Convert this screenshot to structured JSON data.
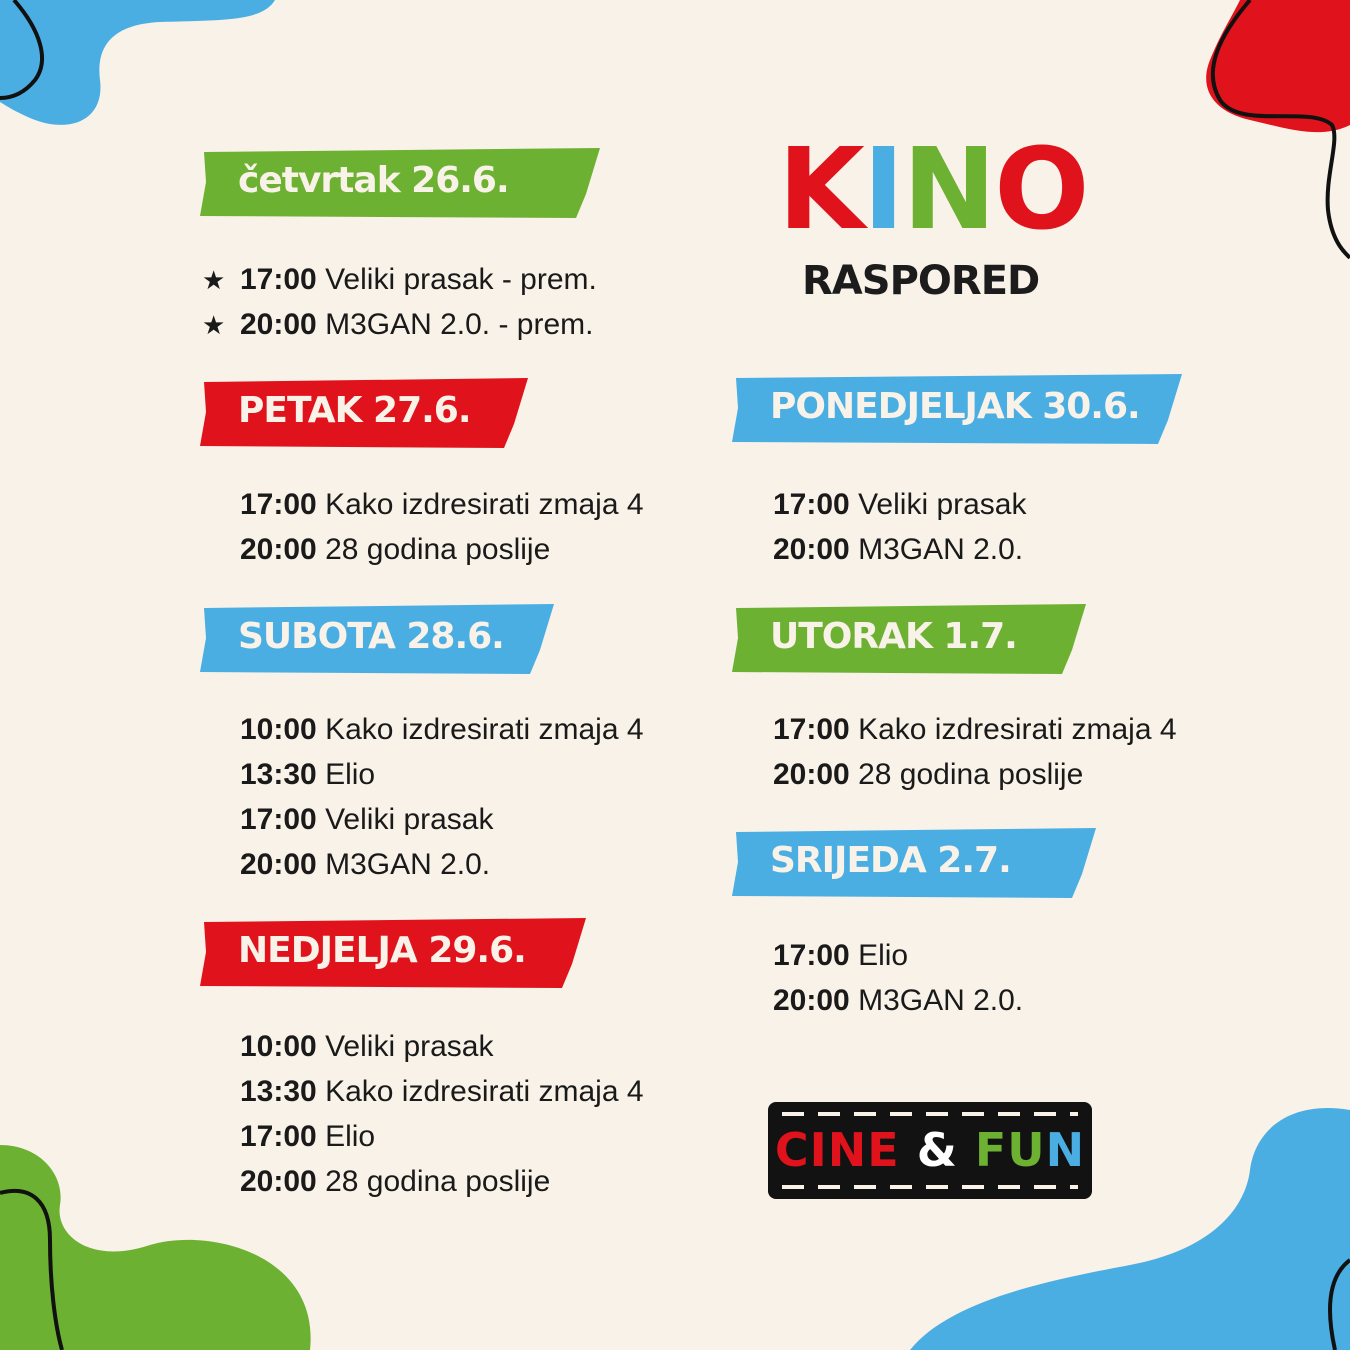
{
  "header": {
    "title_letters": [
      {
        "ch": "K",
        "color": "#e0121b"
      },
      {
        "ch": "I",
        "color": "#4aaee3"
      },
      {
        "ch": "N",
        "color": "#6db132"
      },
      {
        "ch": "O",
        "color": "#e0121b"
      }
    ],
    "subtitle": "RASPORED"
  },
  "colors": {
    "green": "#6db132",
    "red": "#e0121b",
    "blue": "#4aaee3",
    "background": "#f8f2e8"
  },
  "days": [
    {
      "label": "četvrtak 26.6.",
      "color": "green",
      "shows": [
        {
          "time": "17:00",
          "title": "Veliki prasak - prem.",
          "premiere": true,
          "icon": "star-icon"
        },
        {
          "time": "20:00",
          "title": "M3GAN 2.0. - prem.",
          "premiere": true,
          "icon": "star-icon"
        }
      ]
    },
    {
      "label": "PETAK 27.6.",
      "color": "red",
      "shows": [
        {
          "time": "17:00",
          "title": "Kako izdresirati zmaja 4"
        },
        {
          "time": "20:00",
          "title": "28 godina poslije"
        }
      ]
    },
    {
      "label": "SUBOTA 28.6.",
      "color": "blue",
      "shows": [
        {
          "time": "10:00",
          "title": "Kako izdresirati zmaja 4"
        },
        {
          "time": "13:30",
          "title": "Elio"
        },
        {
          "time": "17:00",
          "title": "Veliki prasak"
        },
        {
          "time": "20:00",
          "title": "M3GAN 2.0."
        }
      ]
    },
    {
      "label": "NEDJELJA 29.6.",
      "color": "red",
      "shows": [
        {
          "time": "10:00",
          "title": "Veliki prasak"
        },
        {
          "time": "13:30",
          "title": "Kako izdresirati zmaja 4"
        },
        {
          "time": "17:00",
          "title": "Elio"
        },
        {
          "time": "20:00",
          "title": "28 godina poslije"
        }
      ]
    },
    {
      "label": "PONEDJELJAK 30.6.",
      "color": "blue",
      "shows": [
        {
          "time": "17:00",
          "title": "Veliki prasak"
        },
        {
          "time": "20:00",
          "title": "M3GAN 2.0."
        }
      ]
    },
    {
      "label": "UTORAK 1.7.",
      "color": "green",
      "shows": [
        {
          "time": "17:00",
          "title": "Kako izdresirati zmaja 4"
        },
        {
          "time": "20:00",
          "title": "28 godina poslije"
        }
      ]
    },
    {
      "label": "SRIJEDA 2.7.",
      "color": "blue",
      "shows": [
        {
          "time": "17:00",
          "title": "Elio"
        },
        {
          "time": "20:00",
          "title": "M3GAN 2.0."
        }
      ]
    }
  ],
  "logo": {
    "letters": [
      {
        "ch": "C",
        "color": "#e0121b"
      },
      {
        "ch": "I",
        "color": "#e0121b"
      },
      {
        "ch": "N",
        "color": "#e0121b"
      },
      {
        "ch": "E",
        "color": "#e0121b"
      },
      {
        "ch": " ",
        "color": "#ffffff"
      },
      {
        "ch": "&",
        "color": "#ffffff"
      },
      {
        "ch": " ",
        "color": "#ffffff"
      },
      {
        "ch": "F",
        "color": "#6db132"
      },
      {
        "ch": "U",
        "color": "#6db132"
      },
      {
        "ch": "N",
        "color": "#4aaee3"
      }
    ],
    "icon": "film-reel-icon"
  }
}
